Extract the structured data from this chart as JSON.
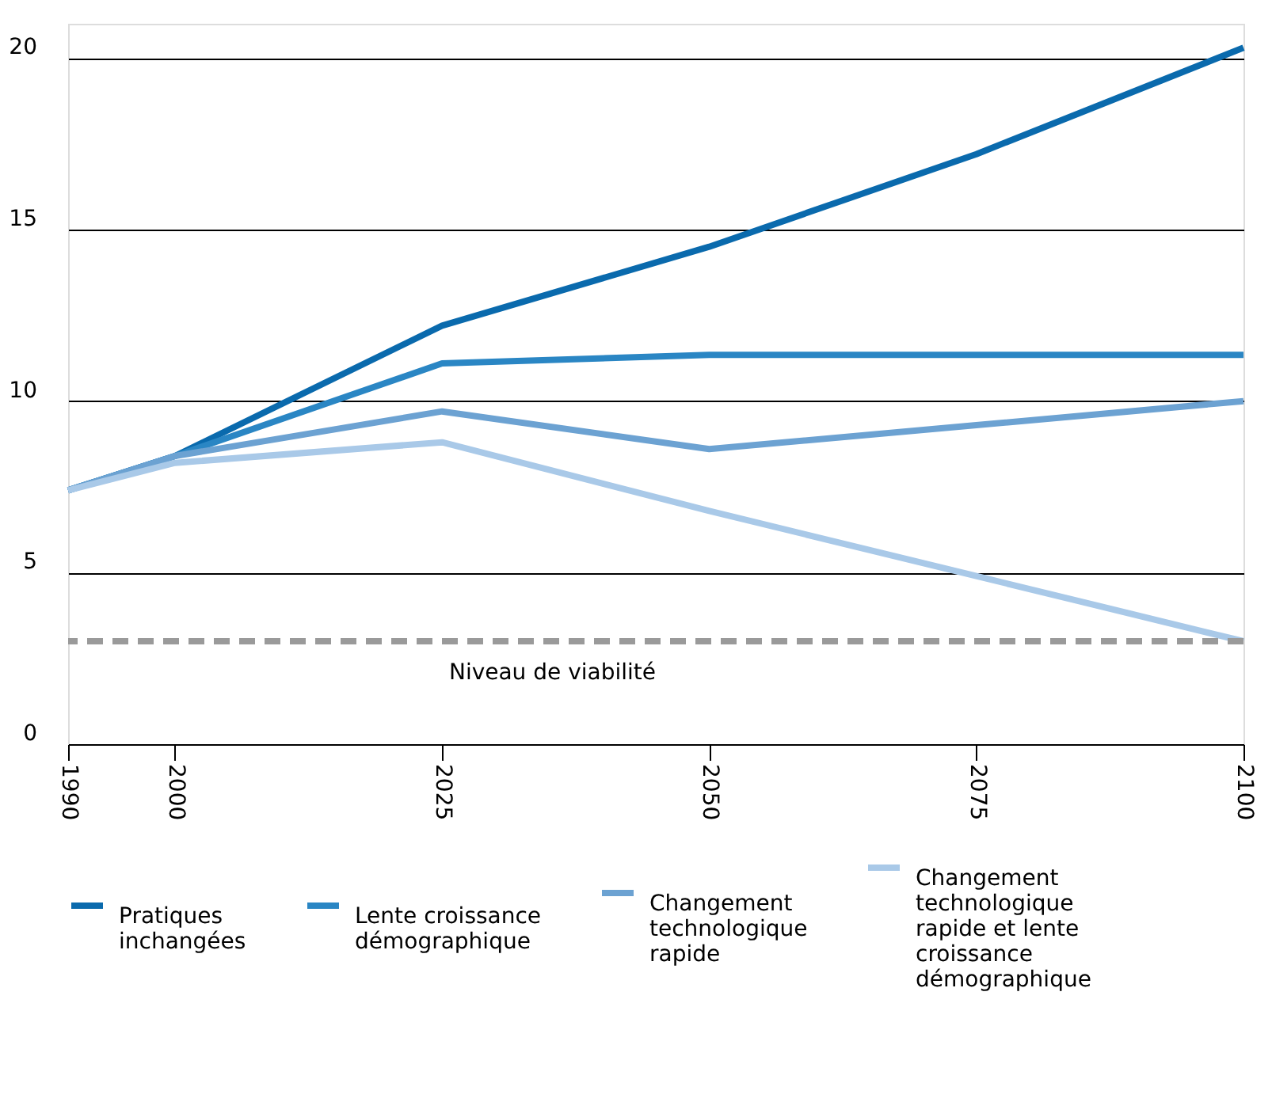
{
  "chart_data": {
    "type": "line",
    "x": [
      1990,
      2000,
      2025,
      2050,
      2075,
      2100
    ],
    "series": [
      {
        "name": "Pratiques inchangées",
        "color": "#0a6aad",
        "values": [
          7.4,
          8.4,
          12.2,
          14.5,
          17.2,
          20.3
        ]
      },
      {
        "name": "Lente croissance démographique",
        "color": "#2a86c4",
        "values": [
          7.4,
          8.4,
          11.1,
          11.35,
          11.35,
          11.35
        ]
      },
      {
        "name": "Changement technologique rapide",
        "color": "#6ca2d2",
        "values": [
          7.4,
          8.4,
          9.7,
          8.6,
          9.3,
          10.0
        ]
      },
      {
        "name": "Changement technologique rapide et lente croissance démographique",
        "color": "#a9c9e8",
        "values": [
          7.4,
          8.2,
          8.8,
          6.8,
          4.9,
          3.0
        ]
      }
    ],
    "xlim": [
      1990,
      2100
    ],
    "xticks": [
      1990,
      2000,
      2025,
      2050,
      2075,
      2100
    ],
    "ylim": [
      0,
      21
    ],
    "yticks": [
      0,
      5,
      10,
      15,
      20
    ],
    "ref_lines": [
      {
        "axis": "y",
        "value": 3.0,
        "label": "Niveau de viabilité",
        "color": "#9a9a9a",
        "line_style": "dashed"
      }
    ],
    "grid": "y",
    "legend": "bottom",
    "marker": "none",
    "line_style": "solid"
  }
}
